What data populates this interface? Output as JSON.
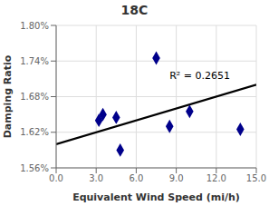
{
  "chart_data": {
    "type": "scatter",
    "title": "18C",
    "xlabel": "Equivalent Wind Speed (mi/h)",
    "ylabel": "Damping Ratio",
    "xlim": [
      0.0,
      15.0
    ],
    "ylim": [
      0.0156,
      0.018
    ],
    "xticks": [
      {
        "value": 0.0,
        "label": "0.0"
      },
      {
        "value": 3.0,
        "label": "3.0"
      },
      {
        "value": 6.0,
        "label": "6.0"
      },
      {
        "value": 9.0,
        "label": "9.0"
      },
      {
        "value": 12.0,
        "label": "12.0"
      },
      {
        "value": 15.0,
        "label": "15.0"
      }
    ],
    "yticks": [
      {
        "value": 0.0156,
        "label": "1.56%"
      },
      {
        "value": 0.0162,
        "label": "1.62%"
      },
      {
        "value": 0.0168,
        "label": "1.68%"
      },
      {
        "value": 0.0174,
        "label": "1.74%"
      },
      {
        "value": 0.018,
        "label": "1.80%"
      }
    ],
    "grid": true,
    "series": [
      {
        "type": "scatter",
        "color": "#00008B",
        "marker": "diamond",
        "x": [
          3.2,
          3.5,
          4.5,
          4.8,
          7.5,
          8.5,
          10.0,
          13.8
        ],
        "values": [
          0.0164,
          0.0165,
          0.01645,
          0.0159,
          0.01745,
          0.0163,
          0.01655,
          0.01625
        ]
      },
      {
        "type": "line",
        "color": "#000000",
        "line_style": "solid",
        "x": [
          0.0,
          15.0
        ],
        "values": [
          0.016,
          0.017
        ]
      }
    ],
    "annotations": [
      {
        "text": "R² = 0.2651",
        "x": 8.5,
        "y": 0.0171,
        "color": "#000000"
      }
    ]
  }
}
